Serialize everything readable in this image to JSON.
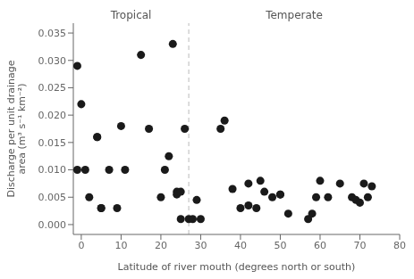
{
  "chart_data": {
    "type": "scatter",
    "xlabel": "Latitude of river mouth (degrees north or south)",
    "ylabel": "Discharge per unit drainage\narea (m³ s⁻¹ km⁻²)",
    "xlim": [
      -2,
      80
    ],
    "ylim": [
      -0.0018,
      0.0368
    ],
    "xticks": [
      0,
      10,
      20,
      30,
      40,
      50,
      60,
      70,
      80
    ],
    "yticks": [
      {
        "value": 0.0,
        "label": "0.000"
      },
      {
        "value": 0.005,
        "label": "0.005"
      },
      {
        "value": 0.01,
        "label": "0.010"
      },
      {
        "value": 0.015,
        "label": "0.015"
      },
      {
        "value": 0.02,
        "label": "0.020"
      },
      {
        "value": 0.025,
        "label": "0.025"
      },
      {
        "value": 0.03,
        "label": "0.030"
      },
      {
        "value": 0.035,
        "label": "0.035"
      }
    ],
    "grid": false,
    "divider": {
      "x": 27,
      "color": "#bbbbbb",
      "line_style": "dashed"
    },
    "series": [
      {
        "name": "Tropical",
        "color": "#1a1a1a",
        "marker": "circle",
        "x": [
          -1,
          -1,
          0,
          1,
          2,
          4,
          4,
          5,
          5,
          7,
          9,
          10,
          11,
          15,
          17,
          20,
          21,
          22,
          23,
          24,
          24,
          25,
          25
        ],
        "values": [
          0.029,
          0.01,
          0.022,
          0.01,
          0.005,
          0.016,
          0.016,
          0.003,
          0.003,
          0.01,
          0.003,
          0.018,
          0.01,
          0.031,
          0.0175,
          0.005,
          0.01,
          0.0125,
          0.033,
          0.006,
          0.0055,
          0.001,
          0.006
        ]
      },
      {
        "name": "Temperate",
        "color": "#1a1a1a",
        "marker": "circle",
        "x": [
          26,
          27,
          28,
          29,
          30,
          35,
          36,
          38,
          40,
          42,
          42,
          44,
          45,
          46,
          48,
          50,
          50,
          52,
          57,
          58,
          59,
          60,
          62,
          65,
          68,
          69,
          70,
          71,
          72,
          73
        ],
        "values": [
          0.0175,
          0.001,
          0.001,
          0.0045,
          0.001,
          0.0175,
          0.019,
          0.0065,
          0.003,
          0.0035,
          0.0075,
          0.003,
          0.008,
          0.006,
          0.005,
          0.0055,
          0.0055,
          0.002,
          0.001,
          0.002,
          0.005,
          0.008,
          0.005,
          0.0075,
          0.005,
          0.0045,
          0.004,
          0.0075,
          0.005,
          0.007
        ]
      }
    ]
  }
}
